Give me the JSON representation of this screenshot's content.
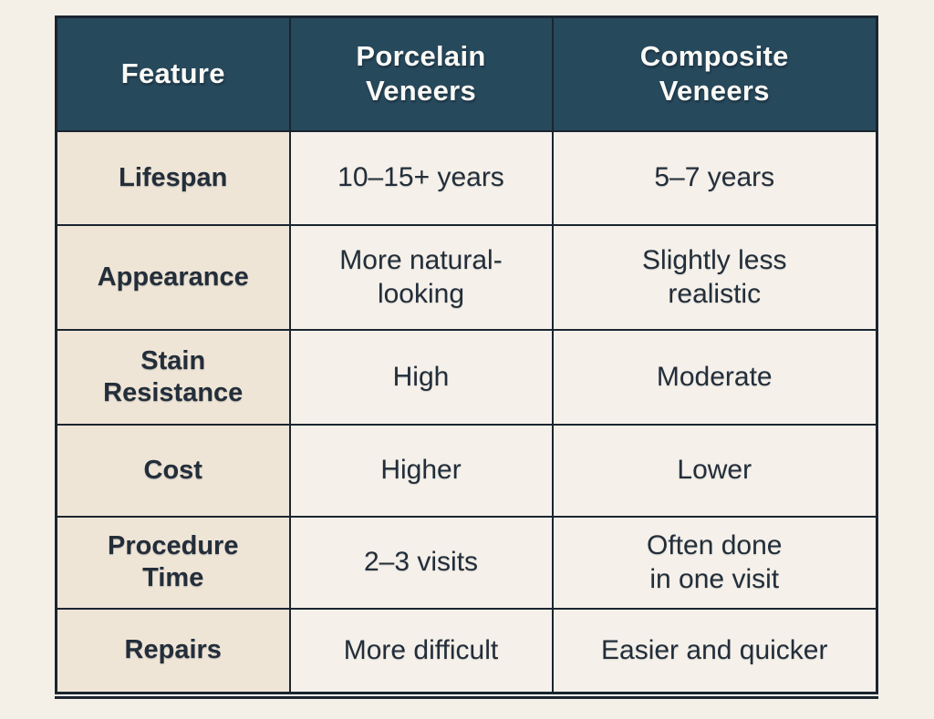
{
  "page": {
    "background_color": "#f4f0e8"
  },
  "colors": {
    "header_bg": "#27495c",
    "header_text": "#fafaf7",
    "feature_col_bg": "#efe5d7",
    "value_col_bg": "#f5f1ea",
    "cell_text": "#232e3a",
    "border": "#1b2530"
  },
  "table": {
    "header": {
      "columns": [
        "Feature",
        "Porcelain\nVeneers",
        "Composite\nVeneers"
      ]
    },
    "rows": [
      {
        "feature": "Lifespan",
        "porcelain": "10–15+ years",
        "composite": "5–7 years"
      },
      {
        "feature": "Appearance",
        "porcelain": "More natural-\nlooking",
        "composite": "Slightly less\nrealistic"
      },
      {
        "feature": "Stain\nResistance",
        "porcelain": "High",
        "composite": "Moderate"
      },
      {
        "feature": "Cost",
        "porcelain": "Higher",
        "composite": "Lower"
      },
      {
        "feature": "Procedure\nTime",
        "porcelain": "2–3 visits",
        "composite": "Often done\nin one visit"
      },
      {
        "feature": "Repairs",
        "porcelain": "More difficult",
        "composite": "Easier and quicker"
      }
    ]
  },
  "chart_data": {
    "type": "table",
    "title": "",
    "columns": [
      "Feature",
      "Porcelain Veneers",
      "Composite Veneers"
    ],
    "rows": [
      [
        "Lifespan",
        "10–15+ years",
        "5–7 years"
      ],
      [
        "Appearance",
        "More natural-looking",
        "Slightly less realistic"
      ],
      [
        "Stain Resistance",
        "High",
        "Moderate"
      ],
      [
        "Cost",
        "Higher",
        "Lower"
      ],
      [
        "Procedure Time",
        "2–3 visits",
        "Often done in one visit"
      ],
      [
        "Repairs",
        "More difficult",
        "Easier and quicker"
      ]
    ]
  }
}
